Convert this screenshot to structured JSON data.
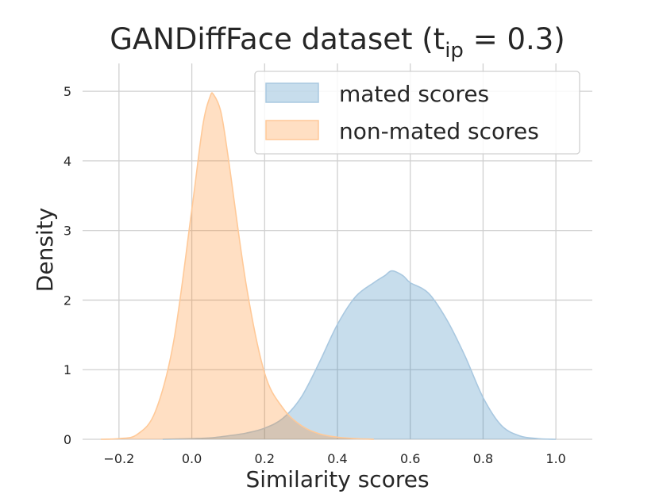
{
  "chart_data": {
    "type": "area",
    "title": {
      "main": "GANDiffFace dataset (t",
      "subscript": "ip",
      "suffix": " = 0.3)"
    },
    "xlabel": "Similarity scores",
    "ylabel": "Density",
    "xlim": [
      -0.3,
      1.1
    ],
    "ylim": [
      0,
      5.4
    ],
    "xticks": [
      -0.2,
      0.0,
      0.2,
      0.4,
      0.6,
      0.8,
      1.0
    ],
    "xtick_labels": [
      "−0.2",
      "0.0",
      "0.2",
      "0.4",
      "0.6",
      "0.8",
      "1.0"
    ],
    "yticks": [
      0,
      1,
      2,
      3,
      4,
      5
    ],
    "ytick_labels": [
      "0",
      "1",
      "2",
      "3",
      "4",
      "5"
    ],
    "grid": true,
    "legend_position": "top-right",
    "series": [
      {
        "name": "mated scores",
        "color": "#a9c8e0",
        "fill_color": "#1f77b4",
        "x": [
          -0.08,
          0.0,
          0.05,
          0.1,
          0.15,
          0.2,
          0.25,
          0.3,
          0.35,
          0.4,
          0.45,
          0.5,
          0.53,
          0.55,
          0.58,
          0.6,
          0.65,
          0.7,
          0.75,
          0.8,
          0.85,
          0.9,
          0.95,
          1.0
        ],
        "y": [
          0.0,
          0.01,
          0.02,
          0.05,
          0.09,
          0.16,
          0.3,
          0.6,
          1.1,
          1.65,
          2.05,
          2.25,
          2.35,
          2.42,
          2.35,
          2.25,
          2.1,
          1.72,
          1.2,
          0.6,
          0.2,
          0.05,
          0.01,
          0.0
        ]
      },
      {
        "name": "non-mated scores",
        "color": "#ffc998",
        "fill_color": "#ff7f0e",
        "x": [
          -0.25,
          -0.2,
          -0.15,
          -0.1,
          -0.05,
          0.0,
          0.03,
          0.05,
          0.06,
          0.08,
          0.1,
          0.15,
          0.2,
          0.25,
          0.3,
          0.35,
          0.4,
          0.45,
          0.5
        ],
        "y": [
          0.0,
          0.01,
          0.07,
          0.4,
          1.4,
          3.3,
          4.5,
          4.92,
          4.95,
          4.7,
          4.05,
          2.2,
          0.95,
          0.45,
          0.2,
          0.08,
          0.03,
          0.01,
          0.0
        ]
      }
    ]
  }
}
